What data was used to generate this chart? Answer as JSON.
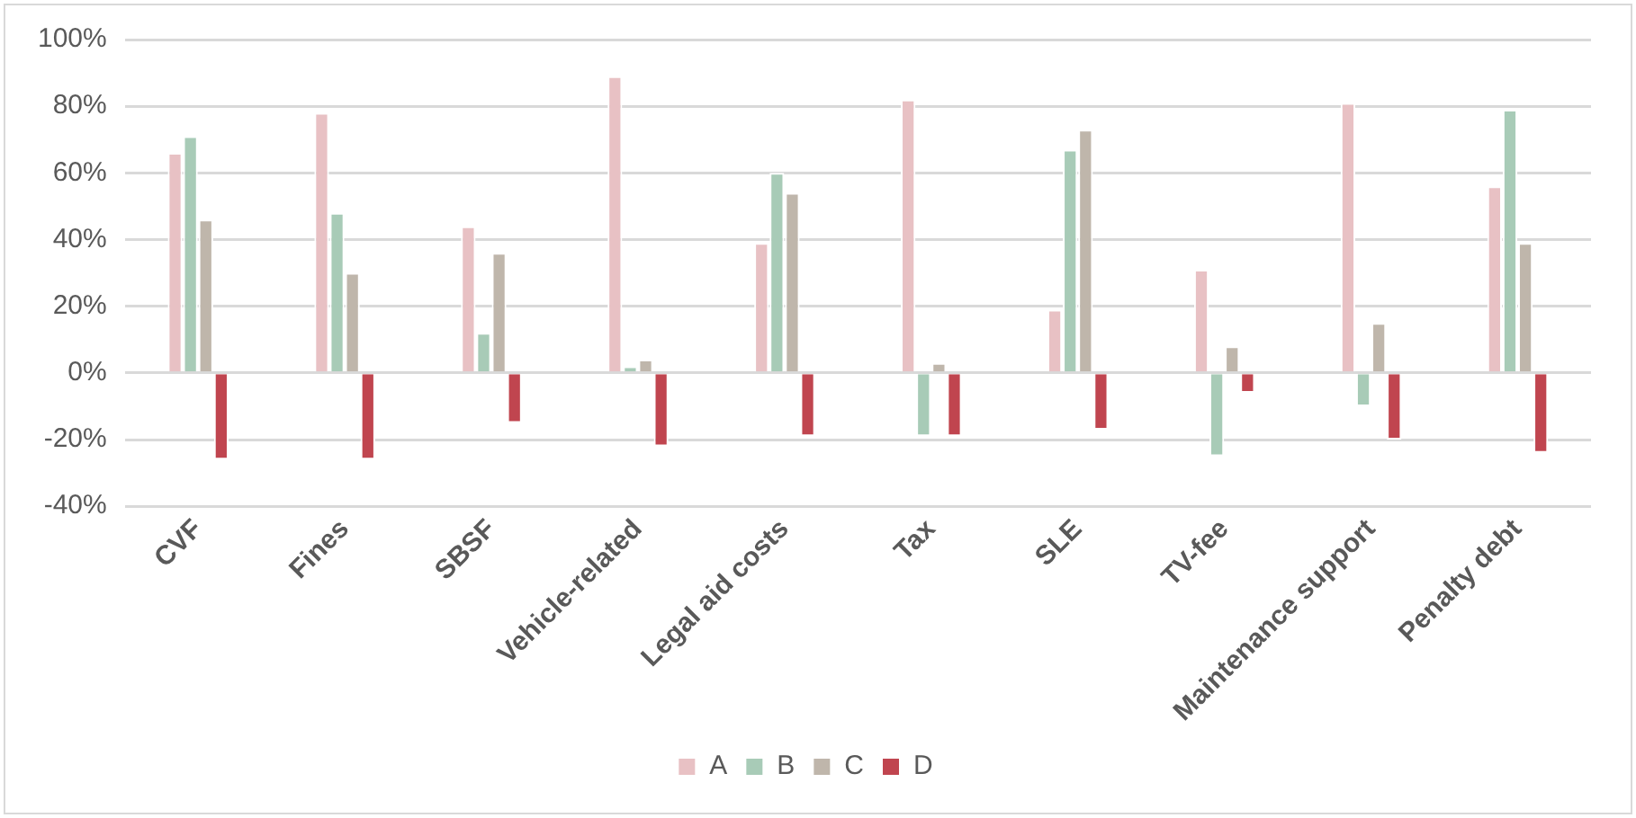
{
  "chart_data": {
    "type": "bar",
    "categories": [
      "CVF",
      "Fines",
      "SBSF",
      "Vehicle-related",
      "Legal aid costs",
      "Tax",
      "SLE",
      "TV-fee",
      "Maintenance support",
      "Penalty debt"
    ],
    "series": [
      {
        "name": "A",
        "color": "#e8c1c4",
        "values": [
          66,
          78,
          44,
          89,
          39,
          82,
          19,
          31,
          81,
          56
        ]
      },
      {
        "name": "B",
        "color": "#a8cbb7",
        "values": [
          71,
          48,
          12,
          2,
          60,
          -19,
          67,
          -25,
          -10,
          79
        ]
      },
      {
        "name": "C",
        "color": "#bfb6ab",
        "values": [
          46,
          30,
          36,
          4,
          54,
          3,
          73,
          8,
          15,
          39
        ]
      },
      {
        "name": "D",
        "color": "#c0454f",
        "values": [
          -26,
          -26,
          -15,
          -22,
          -19,
          -19,
          -17,
          -6,
          -20,
          -24
        ]
      }
    ],
    "ylim": [
      -40,
      100
    ],
    "yticks": [
      {
        "value": -40,
        "label": "-40%"
      },
      {
        "value": -20,
        "label": "-20%"
      },
      {
        "value": 0,
        "label": "0%"
      },
      {
        "value": 20,
        "label": "20%"
      },
      {
        "value": 40,
        "label": "40%"
      },
      {
        "value": 60,
        "label": "60%"
      },
      {
        "value": 80,
        "label": "80%"
      },
      {
        "value": 100,
        "label": "100%"
      }
    ],
    "grid": "y",
    "legend": "bottom"
  }
}
